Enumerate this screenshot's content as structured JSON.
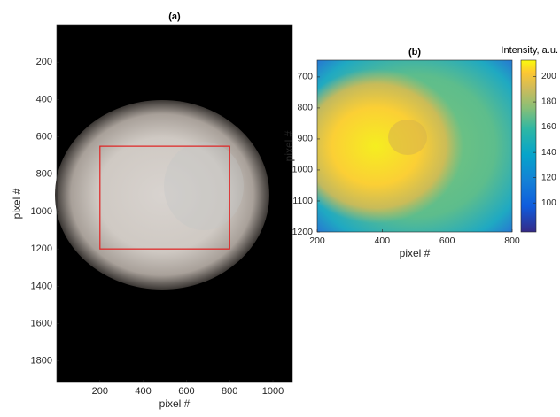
{
  "chart_data": [
    {
      "type": "image",
      "title": "(a)",
      "xlabel": "pixel #",
      "ylabel": "pixel #",
      "xlim": [
        0,
        1090
      ],
      "ylim": [
        0,
        1915
      ],
      "y_reversed": true,
      "xticks": [
        200,
        400,
        600,
        800,
        1000
      ],
      "yticks": [
        200,
        400,
        600,
        800,
        1000,
        1200,
        1400,
        1600,
        1800
      ],
      "roi": {
        "x": [
          200,
          800
        ],
        "y": [
          650,
          1200
        ],
        "color": "#e02020"
      }
    },
    {
      "type": "heatmap",
      "title": "(b)",
      "xlabel": "pixel #",
      "ylabel": "pixel #",
      "xlim": [
        200,
        800
      ],
      "ylim": [
        646,
        1200
      ],
      "y_reversed": true,
      "xticks": [
        200,
        400,
        600,
        800
      ],
      "yticks": [
        700,
        800,
        900,
        1000,
        1100,
        1200
      ],
      "colorbar_label": "Intensity, a.u.",
      "clim": [
        77,
        213
      ],
      "cticks": [
        100,
        120,
        140,
        160,
        180,
        200
      ]
    }
  ]
}
